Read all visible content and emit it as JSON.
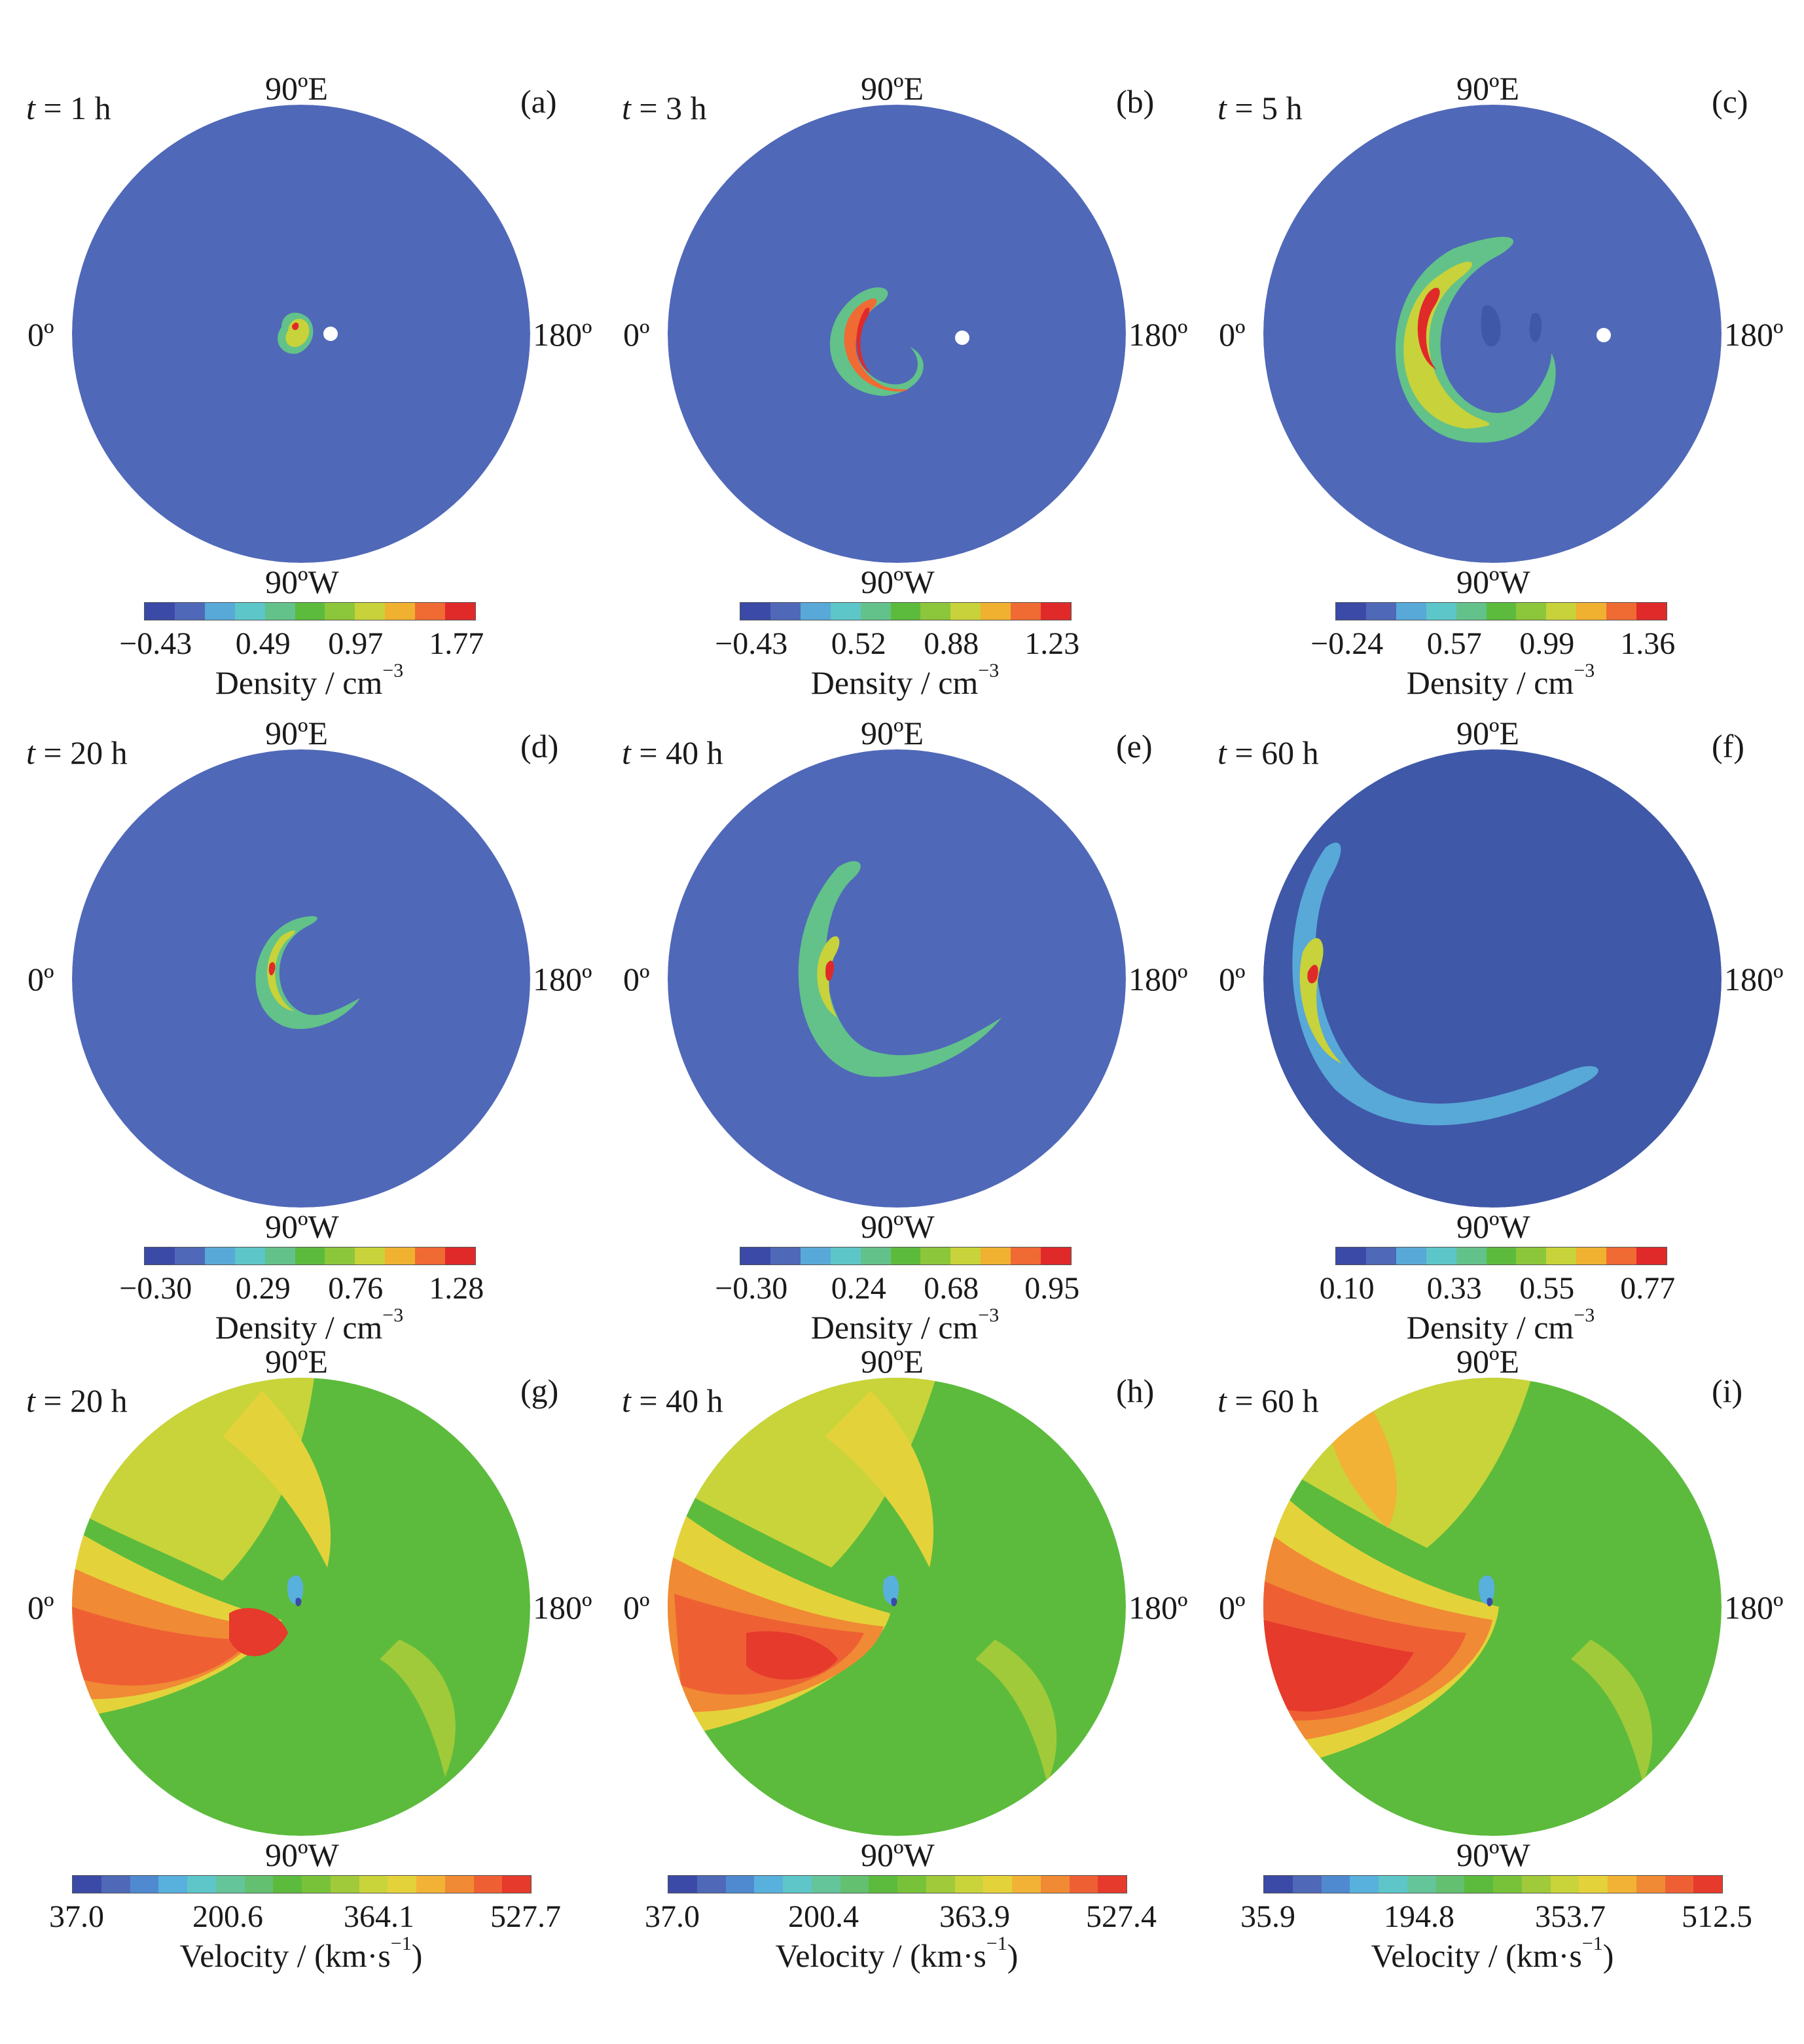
{
  "figure": {
    "panels": [
      {
        "id": "a",
        "label": "(a)",
        "time": "1 h",
        "field": "density",
        "cb_ticks": [
          "−0.43",
          "0.49",
          "0.97",
          "1.77"
        ],
        "cb_title": "Density / cm",
        "cb_unit_sup": "−3"
      },
      {
        "id": "b",
        "label": "(b)",
        "time": "3 h",
        "field": "density",
        "cb_ticks": [
          "−0.43",
          "0.52",
          "0.88",
          "1.23"
        ],
        "cb_title": "Density / cm",
        "cb_unit_sup": "−3"
      },
      {
        "id": "c",
        "label": "(c)",
        "time": "5 h",
        "field": "density",
        "cb_ticks": [
          "−0.24",
          "0.57",
          "0.99",
          "1.36"
        ],
        "cb_title": "Density / cm",
        "cb_unit_sup": "−3"
      },
      {
        "id": "d",
        "label": "(d)",
        "time": "20 h",
        "field": "density",
        "cb_ticks": [
          "−0.30",
          "0.29",
          "0.76",
          "1.28"
        ],
        "cb_title": "Density / cm",
        "cb_unit_sup": "−3"
      },
      {
        "id": "e",
        "label": "(e)",
        "time": "40 h",
        "field": "density",
        "cb_ticks": [
          "−0.30",
          "0.24",
          "0.68",
          "0.95"
        ],
        "cb_title": "Density / cm",
        "cb_unit_sup": "−3"
      },
      {
        "id": "f",
        "label": "(f)",
        "time": "60 h",
        "field": "density",
        "cb_ticks": [
          "0.10",
          "0.33",
          "0.55",
          "0.77"
        ],
        "cb_title": "Density / cm",
        "cb_unit_sup": "−3"
      },
      {
        "id": "g",
        "label": "(g)",
        "time": "20 h",
        "field": "velocity",
        "cb_ticks": [
          "37.0",
          "200.6",
          "364.1",
          "527.7"
        ],
        "cb_title": "Velocity / (km·s",
        "cb_unit_sup": "−1",
        "cb_title_end": ")"
      },
      {
        "id": "h",
        "label": "(h)",
        "time": "40 h",
        "field": "velocity",
        "cb_ticks": [
          "37.0",
          "200.4",
          "363.9",
          "527.4"
        ],
        "cb_title": "Velocity / (km·s",
        "cb_unit_sup": "−1",
        "cb_title_end": ")"
      },
      {
        "id": "i",
        "label": "(i)",
        "time": "60 h",
        "field": "velocity",
        "cb_ticks": [
          "35.9",
          "194.8",
          "353.7",
          "512.5"
        ],
        "cb_title": "Velocity / (km·s",
        "cb_unit_sup": "−1",
        "cb_title_end": ")"
      }
    ],
    "axis_labels": {
      "top": "90ºE",
      "bottom": "90ºW",
      "left": "0º",
      "right": "180º"
    },
    "time_prefix": "t",
    "time_eq": " = ",
    "colors": {
      "background_density": "#5068b8",
      "background_density_dark": "#3f58a8",
      "density_scale": [
        "#3a4aa6",
        "#4f68b8",
        "#58a8d8",
        "#5cc6c8",
        "#62c28a",
        "#5cbb3c",
        "#8cc63a",
        "#c8d23a",
        "#f0b030",
        "#f06a34",
        "#e02a2a"
      ],
      "velocity_scale": [
        "#3a4aa6",
        "#4f68b8",
        "#4f8ad0",
        "#58b0dc",
        "#5ec6c8",
        "#64c49a",
        "#62c070",
        "#5cbb3c",
        "#78c23a",
        "#a0ca3a",
        "#c8d43a",
        "#e4d23a",
        "#f2b236",
        "#f08a34",
        "#ee6034",
        "#e63a2c"
      ]
    }
  }
}
